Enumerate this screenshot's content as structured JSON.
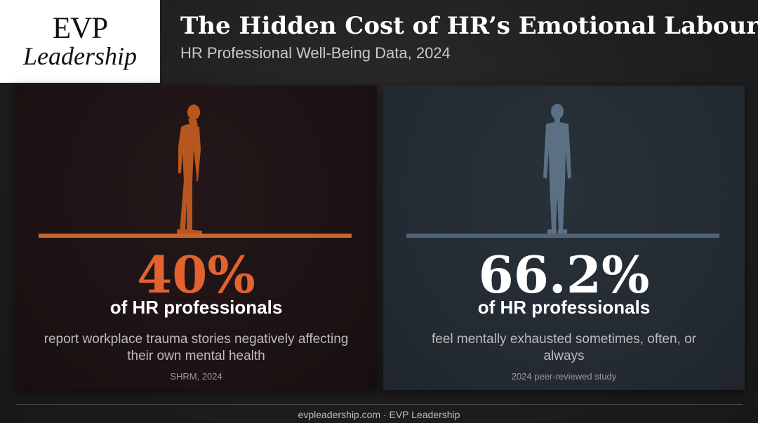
{
  "logo": {
    "line1": "EVP",
    "line2": "Leadership"
  },
  "header": {
    "title": "The Hidden Cost of HR’s Emotional Labour",
    "subtitle": "HR Professional Well-Being Data, 2024"
  },
  "panels": [
    {
      "stat": "40%",
      "who": "of HR professionals",
      "description": "report workplace trauma stories negatively affecting their own mental health",
      "source": "SHRM, 2024",
      "accent_color": "#e2632f",
      "figure_color": "#b8561f",
      "figure_icon": "person-head-bowed-silhouette"
    },
    {
      "stat": "66.2%",
      "who": "of HR professionals",
      "description": "feel mentally exhausted sometimes, often, or always",
      "source": "2024 peer-reviewed study",
      "accent_color": "#ffffff",
      "figure_color": "#5b7084",
      "figure_icon": "person-standing-silhouette"
    }
  ],
  "footer": {
    "text": "evpleadership.com · EVP Leadership"
  }
}
